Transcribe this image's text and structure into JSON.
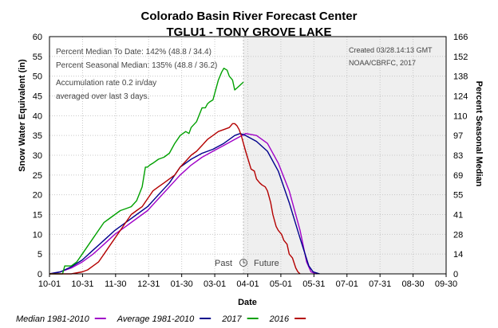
{
  "chart_data": {
    "type": "line",
    "title": "Colorado Basin River Forecast Center",
    "subtitle": "TGLU1 - TONY GROVE LAKE",
    "xlabel": "Date",
    "ylabel_left": "Snow Water Equivalent (in)",
    "ylabel_right": "Percent Seasonal Median",
    "ylim": [
      0,
      60
    ],
    "yticks": [
      "0",
      "5",
      "10",
      "15",
      "20",
      "25",
      "30",
      "35",
      "40",
      "45",
      "50",
      "55",
      "60"
    ],
    "right_ticks": [
      "0",
      "14",
      "28",
      "41",
      "55",
      "69",
      "83",
      "97",
      "110",
      "124",
      "138",
      "152",
      "166"
    ],
    "xticks": [
      "10-01",
      "10-31",
      "11-30",
      "12-31",
      "01-30",
      "03-01",
      "04-01",
      "05-01",
      "05-31",
      "07-01",
      "07-31",
      "08-30",
      "09-30"
    ],
    "xlim_days": [
      0,
      364
    ],
    "today_day": 178,
    "past_label": "Past",
    "future_label": "Future",
    "annotations": {
      "percent_median_to_date": "Percent Median To Date: 142% (48.8 / 34.4)",
      "percent_seasonal_median": "Percent Seasonal Median: 135% (48.8 / 36.2)",
      "accumulation_line1": "Accumulation rate 0.2 in/day",
      "accumulation_line2": "averaged over last 3 days.",
      "created": "Created 03/28.14:13 GMT",
      "source": "NOAA/CBRFC, 2017"
    },
    "series": [
      {
        "name": "Median 1981-2010",
        "color": "#a000c8",
        "x": [
          0,
          10,
          20,
          30,
          40,
          50,
          60,
          70,
          80,
          90,
          100,
          110,
          120,
          130,
          140,
          150,
          160,
          170,
          180,
          190,
          200,
          210,
          220,
          230,
          236,
          240,
          245
        ],
        "y": [
          0,
          0.5,
          1.5,
          3,
          5,
          7.5,
          10,
          12,
          14,
          16,
          19,
          22,
          25,
          27.5,
          29.5,
          31,
          32.5,
          34,
          35.5,
          35,
          33,
          28,
          21,
          11,
          3,
          0.5,
          0
        ]
      },
      {
        "name": "Average 1981-2010",
        "color": "#00008c",
        "x": [
          0,
          10,
          20,
          30,
          40,
          50,
          60,
          70,
          80,
          90,
          100,
          110,
          120,
          130,
          140,
          150,
          160,
          170,
          175,
          180,
          190,
          200,
          210,
          220,
          230,
          238,
          242,
          248
        ],
        "y": [
          0,
          0.5,
          1.8,
          3.5,
          6,
          8.5,
          11,
          13,
          15,
          17,
          20,
          23,
          27,
          29,
          30.5,
          31.5,
          33,
          35,
          35.5,
          35,
          33.5,
          31,
          26,
          18,
          9,
          2,
          0.5,
          0
        ]
      },
      {
        "name": "2017",
        "color": "#00a000",
        "x": [
          0,
          12,
          14,
          16,
          20,
          25,
          30,
          35,
          40,
          45,
          50,
          55,
          60,
          65,
          70,
          75,
          80,
          85,
          88,
          90,
          92,
          95,
          100,
          105,
          110,
          115,
          120,
          125,
          128,
          130,
          135,
          140,
          143,
          145,
          147,
          150,
          153,
          155,
          158,
          160,
          163,
          165,
          168,
          170,
          172,
          174,
          176,
          178
        ],
        "y": [
          0,
          0,
          2,
          2,
          2,
          3,
          5,
          7,
          9,
          11,
          13,
          14,
          15,
          16,
          16.5,
          17,
          18.5,
          22,
          27,
          27,
          27.5,
          28,
          29,
          29.5,
          30.5,
          33,
          35,
          36,
          35.5,
          37,
          38.5,
          42,
          42,
          43,
          43.5,
          44,
          47,
          49,
          51,
          52,
          51.5,
          50,
          49,
          46.5,
          47,
          47.5,
          48,
          48.5
        ]
      },
      {
        "name": "2016",
        "color": "#b40000",
        "x": [
          0,
          20,
          30,
          35,
          40,
          45,
          50,
          55,
          60,
          65,
          70,
          75,
          80,
          85,
          90,
          95,
          100,
          105,
          110,
          115,
          120,
          125,
          130,
          135,
          140,
          145,
          150,
          155,
          160,
          165,
          168,
          170,
          172,
          174,
          176,
          178,
          180,
          185,
          188,
          190,
          193,
          195,
          198,
          200,
          203,
          205,
          208,
          210,
          213,
          215,
          218,
          220,
          223,
          226,
          228,
          230
        ],
        "y": [
          0,
          0,
          0.5,
          1,
          2,
          3,
          5,
          7,
          9,
          11,
          13,
          15,
          16,
          17,
          19,
          21,
          22,
          23,
          24,
          25,
          27,
          28.5,
          30,
          31,
          32.5,
          34,
          35,
          36,
          36.5,
          37,
          38,
          38,
          37.5,
          36.5,
          35,
          33,
          31,
          26.5,
          26,
          24,
          23,
          22.5,
          22,
          21,
          18,
          15,
          12,
          11,
          10,
          8.5,
          7.5,
          5,
          4,
          1.5,
          0.5,
          0
        ]
      }
    ]
  }
}
